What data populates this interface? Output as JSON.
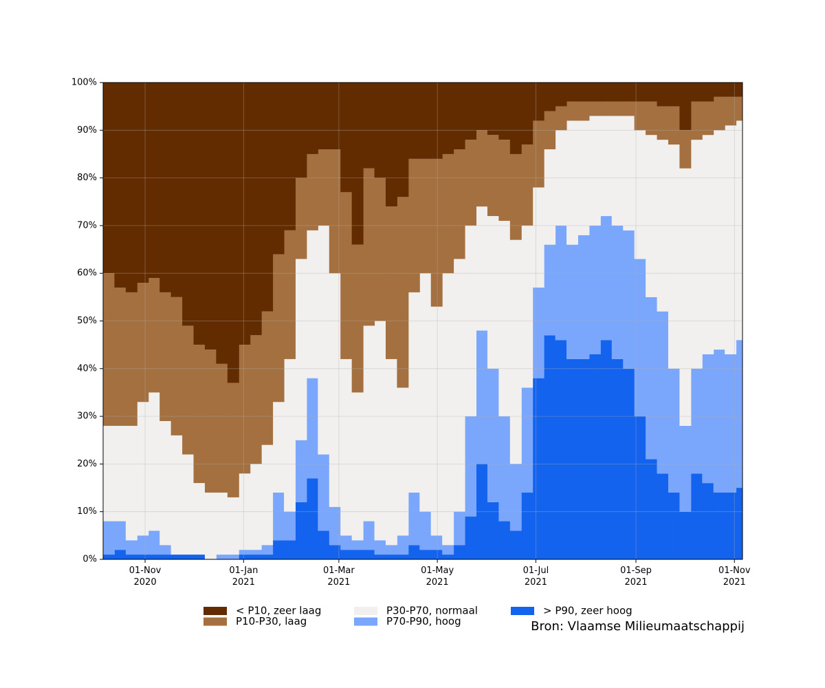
{
  "chart_data": {
    "type": "stacked_step_area",
    "x": [
      "2020-10-06",
      "2020-10-13",
      "2020-10-20",
      "2020-10-27",
      "2020-11-03",
      "2020-11-10",
      "2020-11-17",
      "2020-11-24",
      "2020-12-01",
      "2020-12-08",
      "2020-12-15",
      "2020-12-22",
      "2020-12-29",
      "2021-01-05",
      "2021-01-12",
      "2021-01-19",
      "2021-01-26",
      "2021-02-02",
      "2021-02-09",
      "2021-02-16",
      "2021-02-23",
      "2021-03-02",
      "2021-03-09",
      "2021-03-16",
      "2021-03-23",
      "2021-03-30",
      "2021-04-06",
      "2021-04-13",
      "2021-04-20",
      "2021-04-27",
      "2021-05-04",
      "2021-05-11",
      "2021-05-18",
      "2021-05-25",
      "2021-06-01",
      "2021-06-08",
      "2021-06-15",
      "2021-06-22",
      "2021-06-29",
      "2021-07-06",
      "2021-07-13",
      "2021-07-20",
      "2021-07-27",
      "2021-08-03",
      "2021-08-10",
      "2021-08-17",
      "2021-08-24",
      "2021-08-31",
      "2021-09-07",
      "2021-09-14",
      "2021-09-21",
      "2021-09-28",
      "2021-10-05",
      "2021-10-12",
      "2021-10-19",
      "2021-10-26",
      "2021-11-02"
    ],
    "series": [
      {
        "name": "< P10, zeer laag",
        "color": "#622c00",
        "values": [
          40,
          43,
          44,
          42,
          41,
          44,
          45,
          51,
          55,
          56,
          59,
          63,
          55,
          53,
          48,
          36,
          31,
          20,
          15,
          14,
          14,
          23,
          34,
          18,
          20,
          26,
          24,
          16,
          16,
          16,
          15,
          14,
          12,
          10,
          11,
          12,
          15,
          13,
          8,
          6,
          5,
          4,
          4,
          4,
          4,
          4,
          4,
          4,
          4,
          5,
          5,
          10,
          4,
          4,
          3,
          3,
          3
        ]
      },
      {
        "name": "P10-P30, laag",
        "color": "#a47040",
        "values": [
          32,
          29,
          28,
          25,
          24,
          27,
          29,
          27,
          29,
          30,
          27,
          24,
          27,
          27,
          28,
          31,
          27,
          17,
          16,
          16,
          26,
          35,
          31,
          33,
          30,
          32,
          40,
          28,
          24,
          31,
          25,
          23,
          18,
          16,
          17,
          17,
          18,
          17,
          14,
          8,
          5,
          4,
          4,
          3,
          3,
          3,
          3,
          6,
          7,
          7,
          8,
          8,
          8,
          7,
          7,
          6,
          5
        ]
      },
      {
        "name": "P30-P70, normaal",
        "color": "#f2f0ef",
        "values": [
          20,
          20,
          24,
          28,
          29,
          26,
          25,
          21,
          15,
          14,
          13,
          12,
          16,
          18,
          21,
          19,
          32,
          38,
          31,
          48,
          49,
          37,
          31,
          41,
          46,
          39,
          31,
          42,
          50,
          48,
          57,
          53,
          40,
          26,
          32,
          41,
          47,
          34,
          21,
          20,
          20,
          26,
          24,
          23,
          21,
          23,
          24,
          27,
          34,
          36,
          47,
          54,
          48,
          46,
          46,
          48,
          46
        ]
      },
      {
        "name": "P70-P90, hoog",
        "color": "#7aa7fc",
        "values": [
          7,
          6,
          3,
          4,
          5,
          2,
          0,
          0,
          0,
          0,
          1,
          1,
          1,
          1,
          2,
          10,
          6,
          13,
          21,
          16,
          8,
          3,
          2,
          6,
          3,
          2,
          4,
          11,
          8,
          3,
          2,
          7,
          21,
          28,
          28,
          22,
          14,
          22,
          19,
          19,
          24,
          24,
          26,
          27,
          26,
          28,
          29,
          33,
          34,
          34,
          26,
          18,
          22,
          27,
          30,
          29,
          31
        ]
      },
      {
        "name": "> P90, zeer hoog",
        "color": "#1363ee",
        "values": [
          1,
          2,
          1,
          1,
          1,
          1,
          1,
          1,
          1,
          0,
          0,
          0,
          1,
          1,
          1,
          4,
          4,
          12,
          17,
          6,
          3,
          2,
          2,
          2,
          1,
          1,
          1,
          3,
          2,
          2,
          1,
          3,
          9,
          20,
          12,
          8,
          6,
          14,
          38,
          47,
          46,
          42,
          42,
          43,
          46,
          42,
          40,
          30,
          21,
          18,
          14,
          10,
          18,
          16,
          14,
          14,
          15
        ]
      }
    ],
    "xlim": [
      "2020-10-06",
      "2021-11-06"
    ],
    "xticks": [
      {
        "value": "2020-11-01",
        "label": "01-Nov\n2020"
      },
      {
        "value": "2021-01-01",
        "label": "01-Jan\n2021"
      },
      {
        "value": "2021-03-01",
        "label": "01-Mar\n2021"
      },
      {
        "value": "2021-05-01",
        "label": "01-May\n2021"
      },
      {
        "value": "2021-07-01",
        "label": "01-Jul\n2021"
      },
      {
        "value": "2021-09-01",
        "label": "01-Sep\n2021"
      },
      {
        "value": "2021-11-01",
        "label": "01-Nov\n2021"
      }
    ],
    "ylim": [
      0,
      100
    ],
    "yticks": [
      {
        "value": 0,
        "label": "0%"
      },
      {
        "value": 10,
        "label": "10%"
      },
      {
        "value": 20,
        "label": "20%"
      },
      {
        "value": 30,
        "label": "30%"
      },
      {
        "value": 40,
        "label": "40%"
      },
      {
        "value": 50,
        "label": "50%"
      },
      {
        "value": 60,
        "label": "60%"
      },
      {
        "value": 70,
        "label": "70%"
      },
      {
        "value": 80,
        "label": "80%"
      },
      {
        "value": 90,
        "label": "90%"
      },
      {
        "value": 100,
        "label": "100%"
      }
    ],
    "grid": true,
    "legend": "bottom",
    "source": "Bron: Vlaamse Milieumaatschappij"
  }
}
